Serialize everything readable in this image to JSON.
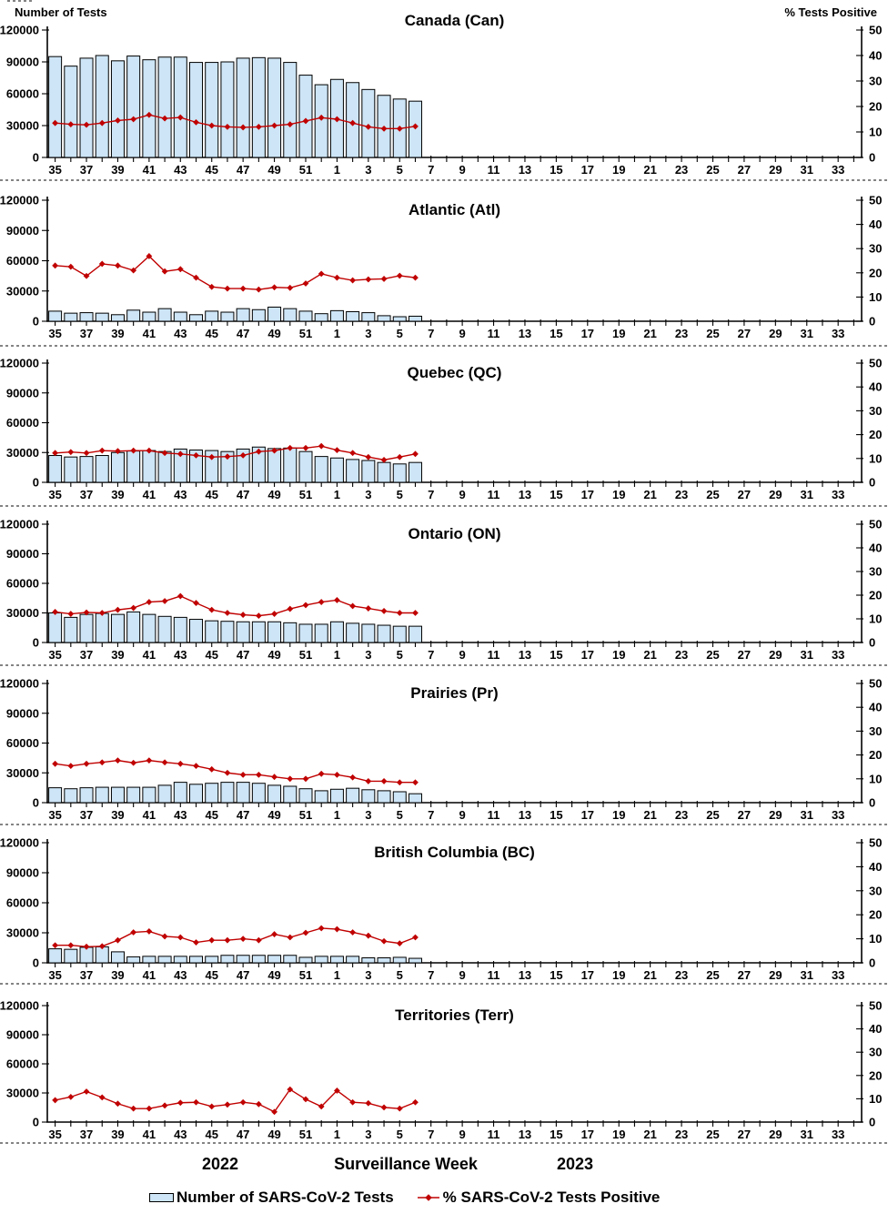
{
  "header": {
    "left_axis_title": "Number of Tests",
    "right_axis_title": "% Tests Positive"
  },
  "footer": {
    "year_left": "2022",
    "axis_title": "Surveillance Week",
    "year_right": "2023"
  },
  "legend": {
    "bars_label": "Number of SARS-CoV-2 Tests",
    "line_label": "% SARS-CoV-2 Tests Positive"
  },
  "colors": {
    "bar_fill": "#CDE5F6",
    "bar_stroke": "#000000",
    "line": "#C00000",
    "text": "#000000"
  },
  "axes": {
    "left_ticks": [
      0,
      30000,
      60000,
      90000,
      120000
    ],
    "right_ticks": [
      0,
      10,
      20,
      30,
      40,
      50
    ],
    "ylim_left": [
      0,
      120000
    ],
    "ylim_right": [
      0,
      50
    ],
    "weeks": [
      "35",
      "36",
      "37",
      "38",
      "39",
      "40",
      "41",
      "42",
      "43",
      "44",
      "45",
      "46",
      "47",
      "48",
      "49",
      "50",
      "51",
      "52",
      "1",
      "2",
      "3",
      "4",
      "5",
      "6",
      "7",
      "8",
      "9",
      "10",
      "11",
      "12",
      "13",
      "14",
      "15",
      "16",
      "17",
      "18",
      "19",
      "20",
      "21",
      "22",
      "23",
      "24",
      "25",
      "26",
      "27",
      "28",
      "29",
      "30",
      "31",
      "32",
      "33",
      "34"
    ],
    "labeled_weeks": [
      "35",
      "37",
      "39",
      "41",
      "43",
      "45",
      "47",
      "49",
      "51",
      "1",
      "3",
      "5",
      "7",
      "9",
      "11",
      "13",
      "15",
      "17",
      "19",
      "21",
      "23",
      "25",
      "27",
      "29",
      "31",
      "33"
    ]
  },
  "chart_data": [
    {
      "id": "canada",
      "type": "combo_bar_line",
      "title": "Canada (Can)",
      "categories": [
        "35",
        "36",
        "37",
        "38",
        "39",
        "40",
        "41",
        "42",
        "43",
        "44",
        "45",
        "46",
        "47",
        "48",
        "49",
        "50",
        "51",
        "52",
        "1",
        "2",
        "3",
        "4",
        "5",
        "6"
      ],
      "series": [
        {
          "name": "Number of SARS-CoV-2 Tests",
          "axis": "left",
          "values": [
            95000,
            86000,
            93500,
            96000,
            91000,
            95500,
            92000,
            94500,
            94500,
            89500,
            89500,
            90000,
            93500,
            94000,
            93500,
            89500,
            77500,
            68500,
            73500,
            70500,
            64000,
            58500,
            55000,
            53000
          ]
        },
        {
          "name": "% SARS-CoV-2 Tests Positive",
          "axis": "right",
          "values": [
            13.5,
            13.0,
            12.8,
            13.5,
            14.5,
            15.0,
            16.7,
            15.3,
            15.7,
            13.8,
            12.5,
            12.0,
            11.8,
            12.0,
            12.5,
            13.0,
            14.3,
            15.6,
            15.0,
            13.5,
            12.0,
            11.3,
            11.3,
            12.2
          ]
        }
      ]
    },
    {
      "id": "atlantic",
      "type": "combo_bar_line",
      "title": "Atlantic (Atl)",
      "categories": [
        "35",
        "36",
        "37",
        "38",
        "39",
        "40",
        "41",
        "42",
        "43",
        "44",
        "45",
        "46",
        "47",
        "48",
        "49",
        "50",
        "51",
        "52",
        "1",
        "2",
        "3",
        "4",
        "5",
        "6"
      ],
      "series": [
        {
          "name": "Number of SARS-CoV-2 Tests",
          "axis": "left",
          "values": [
            10000,
            8000,
            8500,
            8000,
            6500,
            11000,
            9000,
            12500,
            9000,
            6500,
            10000,
            9000,
            12500,
            11500,
            14000,
            12500,
            10000,
            7500,
            10500,
            9500,
            8500,
            5500,
            4500,
            5000
          ]
        },
        {
          "name": "% SARS-CoV-2 Tests Positive",
          "axis": "right",
          "values": [
            23.0,
            22.5,
            18.7,
            23.7,
            23.0,
            21.0,
            26.9,
            20.6,
            21.5,
            18.0,
            14.2,
            13.5,
            13.5,
            13.1,
            14.0,
            13.8,
            15.6,
            19.6,
            18.0,
            16.9,
            17.3,
            17.5,
            18.8,
            18.0
          ]
        }
      ]
    },
    {
      "id": "quebec",
      "type": "combo_bar_line",
      "title": "Quebec (QC)",
      "categories": [
        "35",
        "36",
        "37",
        "38",
        "39",
        "40",
        "41",
        "42",
        "43",
        "44",
        "45",
        "46",
        "47",
        "48",
        "49",
        "50",
        "51",
        "52",
        "1",
        "2",
        "3",
        "4",
        "5",
        "6"
      ],
      "series": [
        {
          "name": "Number of SARS-CoV-2 Tests",
          "axis": "left",
          "values": [
            27000,
            25500,
            26000,
            27000,
            30000,
            31500,
            32000,
            31000,
            33500,
            32500,
            32000,
            31000,
            33500,
            35500,
            34000,
            34500,
            31000,
            26000,
            24500,
            23000,
            22000,
            20000,
            18500,
            20000
          ]
        },
        {
          "name": "% SARS-CoV-2 Tests Positive",
          "axis": "right",
          "values": [
            12.3,
            12.7,
            12.3,
            13.3,
            13.1,
            13.3,
            13.3,
            12.3,
            11.9,
            11.3,
            10.6,
            10.8,
            11.3,
            12.9,
            13.3,
            14.4,
            14.4,
            15.2,
            13.5,
            12.3,
            10.6,
            9.4,
            10.6,
            11.9
          ]
        }
      ]
    },
    {
      "id": "ontario",
      "type": "combo_bar_line",
      "title": "Ontario (ON)",
      "categories": [
        "35",
        "36",
        "37",
        "38",
        "39",
        "40",
        "41",
        "42",
        "43",
        "44",
        "45",
        "46",
        "47",
        "48",
        "49",
        "50",
        "51",
        "52",
        "1",
        "2",
        "3",
        "4",
        "5",
        "6"
      ],
      "series": [
        {
          "name": "Number of SARS-CoV-2 Tests",
          "axis": "left",
          "values": [
            30000,
            25500,
            28500,
            29500,
            28500,
            31000,
            28500,
            26500,
            25500,
            23500,
            22000,
            21500,
            21000,
            21000,
            21000,
            20000,
            18500,
            18500,
            21000,
            19500,
            18500,
            17500,
            16500,
            16500
          ]
        },
        {
          "name": "% SARS-CoV-2 Tests Positive",
          "axis": "right",
          "values": [
            12.9,
            12.1,
            12.7,
            12.5,
            13.8,
            14.6,
            17.1,
            17.5,
            19.6,
            16.7,
            13.8,
            12.5,
            11.7,
            11.3,
            12.1,
            14.2,
            15.8,
            17.1,
            17.9,
            15.4,
            14.4,
            13.3,
            12.5,
            12.5
          ]
        }
      ]
    },
    {
      "id": "prairies",
      "type": "combo_bar_line",
      "title": "Prairies (Pr)",
      "categories": [
        "35",
        "36",
        "37",
        "38",
        "39",
        "40",
        "41",
        "42",
        "43",
        "44",
        "45",
        "46",
        "47",
        "48",
        "49",
        "50",
        "51",
        "52",
        "1",
        "2",
        "3",
        "4",
        "5",
        "6"
      ],
      "series": [
        {
          "name": "Number of SARS-CoV-2 Tests",
          "axis": "left",
          "values": [
            15000,
            14000,
            15000,
            15500,
            15500,
            15500,
            15500,
            17500,
            20500,
            18500,
            19500,
            20500,
            20500,
            19500,
            17500,
            16500,
            14000,
            12000,
            13500,
            14500,
            13000,
            12000,
            11000,
            9000
          ]
        },
        {
          "name": "% SARS-CoV-2 Tests Positive",
          "axis": "right",
          "values": [
            16.3,
            15.4,
            16.3,
            16.9,
            17.7,
            16.7,
            17.7,
            16.9,
            16.3,
            15.4,
            14.0,
            12.5,
            11.7,
            11.7,
            10.8,
            10.0,
            10.0,
            12.1,
            11.7,
            10.6,
            9.0,
            9.0,
            8.5,
            8.5
          ]
        }
      ]
    },
    {
      "id": "british-columbia",
      "type": "combo_bar_line",
      "title": "British Columbia (BC)",
      "categories": [
        "35",
        "36",
        "37",
        "38",
        "39",
        "40",
        "41",
        "42",
        "43",
        "44",
        "45",
        "46",
        "47",
        "48",
        "49",
        "50",
        "51",
        "52",
        "1",
        "2",
        "3",
        "4",
        "5",
        "6"
      ],
      "series": [
        {
          "name": "Number of SARS-CoV-2 Tests",
          "axis": "left",
          "values": [
            14000,
            13500,
            15500,
            16000,
            11000,
            6000,
            6500,
            6500,
            6500,
            6500,
            6500,
            7500,
            7500,
            7500,
            7500,
            7500,
            5500,
            6500,
            6500,
            6500,
            5000,
            5000,
            5500,
            4500
          ]
        },
        {
          "name": "% SARS-CoV-2 Tests Positive",
          "axis": "right",
          "values": [
            7.3,
            7.3,
            6.7,
            6.9,
            9.4,
            12.7,
            13.1,
            11.0,
            10.6,
            8.5,
            9.4,
            9.4,
            10.0,
            9.4,
            11.9,
            10.6,
            12.5,
            14.4,
            14.0,
            12.7,
            11.3,
            9.0,
            8.1,
            10.6
          ]
        }
      ]
    },
    {
      "id": "territories",
      "type": "combo_bar_line",
      "title": "Territories (Terr)",
      "categories": [
        "35",
        "36",
        "37",
        "38",
        "39",
        "40",
        "41",
        "42",
        "43",
        "44",
        "45",
        "46",
        "47",
        "48",
        "49",
        "50",
        "51",
        "52",
        "1",
        "2",
        "3",
        "4",
        "5",
        "6"
      ],
      "series": [
        {
          "name": "Number of SARS-CoV-2 Tests",
          "axis": "left",
          "values": [
            0,
            0,
            0,
            0,
            0,
            0,
            0,
            0,
            0,
            0,
            0,
            0,
            0,
            0,
            0,
            0,
            0,
            0,
            0,
            0,
            0,
            0,
            0,
            0
          ]
        },
        {
          "name": "% SARS-CoV-2 Tests Positive",
          "axis": "right",
          "values": [
            9.4,
            10.8,
            13.1,
            10.6,
            7.9,
            5.8,
            5.8,
            7.1,
            8.3,
            8.5,
            6.7,
            7.5,
            8.5,
            7.7,
            4.4,
            14.0,
            9.8,
            6.7,
            13.5,
            8.5,
            8.1,
            6.3,
            5.8,
            8.5
          ]
        }
      ]
    }
  ]
}
